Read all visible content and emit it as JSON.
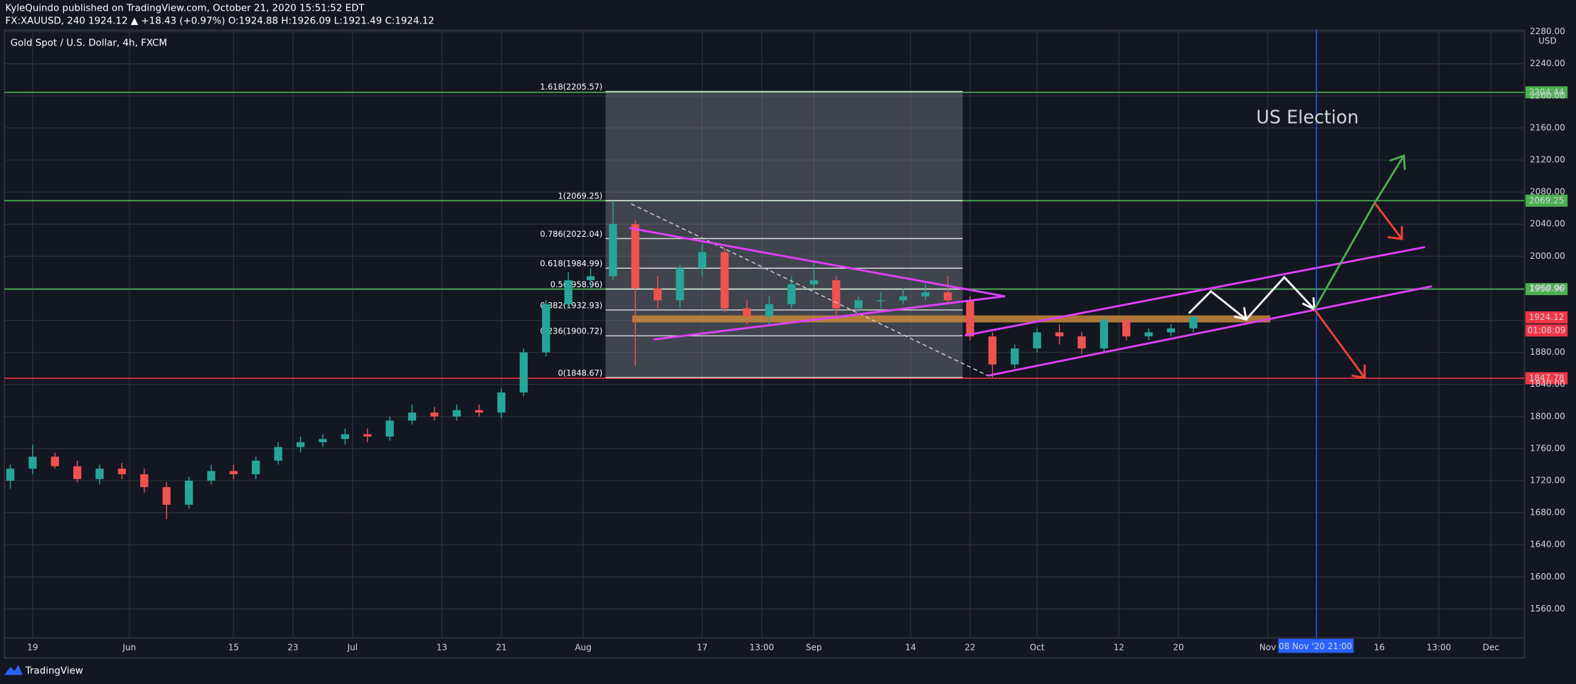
{
  "header": {
    "published": "KyleQuindo published on TradingView.com, October 21, 2020 15:51:52 EDT",
    "quote": "FX:XAUUSD, 240  1924.12 ▲ +18.43 (+0.97%) O:1924.88 H:1926.09 L:1921.49 C:1924.12"
  },
  "footer": {
    "brand": "TradingView"
  },
  "chart_data": {
    "type": "candlestick",
    "title": "Gold Spot / U.S. Dollar, 4h, FXCM",
    "currency": "USD",
    "annotation": "US Election",
    "cursor_label": "08 Nov '20   21:00",
    "last_price": 1924.12,
    "countdown": "01:08:09",
    "colors": {
      "up": "#26a69a",
      "down": "#ef5350",
      "grid": "#2a2e39"
    },
    "grid": true,
    "xlim": [
      136.2,
      340.5
    ],
    "ylim": [
      1524,
      2282
    ],
    "yticks": [
      {
        "value": 1560,
        "label": "1560.00"
      },
      {
        "value": 1600,
        "label": "1600.00"
      },
      {
        "value": 1640,
        "label": "1640.00"
      },
      {
        "value": 1680,
        "label": "1680.00"
      },
      {
        "value": 1720,
        "label": "1720.00"
      },
      {
        "value": 1760,
        "label": "1760.00"
      },
      {
        "value": 1800,
        "label": "1800.00"
      },
      {
        "value": 1840,
        "label": "1840.00"
      },
      {
        "value": 1880,
        "label": "1880.00"
      },
      {
        "value": 1920,
        "label": "1920.00"
      },
      {
        "value": 1960,
        "label": "1960.00"
      },
      {
        "value": 2000,
        "label": "2000.00"
      },
      {
        "value": 2040,
        "label": "2040.00"
      },
      {
        "value": 2080,
        "label": "2080.00"
      },
      {
        "value": 2120,
        "label": "2120.00"
      },
      {
        "value": 2160,
        "label": "2160.00"
      },
      {
        "value": 2200,
        "label": "2200.00"
      },
      {
        "value": 2240,
        "label": "2240.00"
      },
      {
        "value": 2280,
        "label": "2280.00"
      }
    ],
    "xticks": [
      {
        "value": 140,
        "label": "19"
      },
      {
        "value": 153,
        "label": "Jun"
      },
      {
        "value": 167,
        "label": "15"
      },
      {
        "value": 175,
        "label": "23"
      },
      {
        "value": 183,
        "label": "Jul"
      },
      {
        "value": 195,
        "label": "13"
      },
      {
        "value": 203,
        "label": "21"
      },
      {
        "value": 214,
        "label": "Aug"
      },
      {
        "value": 230,
        "label": "17"
      },
      {
        "value": 238,
        "label": "13:00"
      },
      {
        "value": 245,
        "label": "Sep"
      },
      {
        "value": 258,
        "label": "14"
      },
      {
        "value": 266,
        "label": "22"
      },
      {
        "value": 275,
        "label": "Oct"
      },
      {
        "value": 286,
        "label": "12"
      },
      {
        "value": 294,
        "label": "20"
      },
      {
        "value": 306,
        "label": "Nov"
      },
      {
        "value": 321,
        "label": "16"
      },
      {
        "value": 329,
        "label": "13:00"
      },
      {
        "value": 336,
        "label": "Dec"
      }
    ],
    "levels": [
      {
        "value": 2204.44,
        "color": "#4caf50"
      },
      {
        "value": 2069.25,
        "color": "#4caf50"
      },
      {
        "value": 1958.96,
        "color": "#4caf50"
      },
      {
        "value": 1847.78,
        "color": "#f23645"
      }
    ],
    "fib_levels": [
      {
        "label": "1.618(2205.57)",
        "value": 2205.57
      },
      {
        "label": "1(2069.25)",
        "value": 2069.25
      },
      {
        "label": "0.786(2022.04)",
        "value": 2022.04
      },
      {
        "label": "0.618(1984.99)",
        "value": 1984.99
      },
      {
        "label": "0.5(1958.96)",
        "value": 1958.96
      },
      {
        "label": "0.382(1932.93)",
        "value": 1932.93
      },
      {
        "label": "0.236(1900.72)",
        "value": 1900.72
      },
      {
        "label": "0(1848.67)",
        "value": 1848.67
      }
    ],
    "fib_range": [
      217,
      265
    ],
    "candles": {
      "x": [
        137,
        140,
        143,
        146,
        149,
        152,
        155,
        158,
        161,
        164,
        167,
        170,
        173,
        176,
        179,
        182,
        185,
        188,
        191,
        194,
        197,
        200,
        203,
        206,
        209,
        212,
        215,
        218,
        221,
        224,
        227,
        230,
        233,
        236,
        239,
        242,
        245,
        248,
        251,
        254,
        257,
        260,
        263,
        266,
        269,
        272,
        275,
        278,
        281,
        284,
        287,
        290,
        293,
        296
      ],
      "open": [
        1720,
        1735,
        1750,
        1738,
        1722,
        1735,
        1728,
        1712,
        1690,
        1720,
        1732,
        1728,
        1745,
        1762,
        1768,
        1772,
        1778,
        1775,
        1795,
        1805,
        1800,
        1808,
        1805,
        1830,
        1880,
        1940,
        1970,
        1975,
        2040,
        1960,
        1945,
        1985,
        2005,
        1935,
        1925,
        1940,
        1965,
        1970,
        1935,
        1945,
        1945,
        1950,
        1955,
        1945,
        1900,
        1865,
        1885,
        1905,
        1900,
        1885,
        1920,
        1900,
        1905,
        1910
      ],
      "high": [
        1740,
        1765,
        1755,
        1745,
        1740,
        1742,
        1735,
        1718,
        1725,
        1740,
        1740,
        1750,
        1768,
        1775,
        1778,
        1785,
        1785,
        1800,
        1815,
        1812,
        1815,
        1815,
        1835,
        1885,
        1945,
        1980,
        1985,
        2069,
        2045,
        1975,
        1990,
        2015,
        2010,
        1945,
        1950,
        1975,
        1995,
        1975,
        1950,
        1955,
        1960,
        1965,
        1975,
        1950,
        1905,
        1890,
        1910,
        1915,
        1905,
        1925,
        1925,
        1910,
        1915,
        1926
      ],
      "low": [
        1710,
        1728,
        1735,
        1718,
        1715,
        1722,
        1705,
        1672,
        1685,
        1715,
        1722,
        1722,
        1740,
        1755,
        1762,
        1765,
        1768,
        1770,
        1790,
        1795,
        1795,
        1800,
        1798,
        1825,
        1875,
        1935,
        1960,
        1970,
        1863,
        1935,
        1935,
        1975,
        1930,
        1915,
        1915,
        1935,
        1960,
        1925,
        1930,
        1935,
        1940,
        1945,
        1940,
        1895,
        1849,
        1860,
        1880,
        1890,
        1878,
        1880,
        1895,
        1895,
        1900,
        1905
      ],
      "close": [
        1735,
        1750,
        1738,
        1722,
        1735,
        1728,
        1712,
        1690,
        1720,
        1732,
        1728,
        1745,
        1762,
        1768,
        1772,
        1778,
        1775,
        1795,
        1805,
        1800,
        1808,
        1805,
        1830,
        1880,
        1940,
        1970,
        1975,
        2040,
        1960,
        1945,
        1985,
        2005,
        1935,
        1925,
        1940,
        1965,
        1970,
        1935,
        1945,
        1945,
        1950,
        1955,
        1945,
        1900,
        1865,
        1885,
        1905,
        1900,
        1885,
        1920,
        1900,
        1905,
        1910,
        1924.12
      ]
    }
  }
}
